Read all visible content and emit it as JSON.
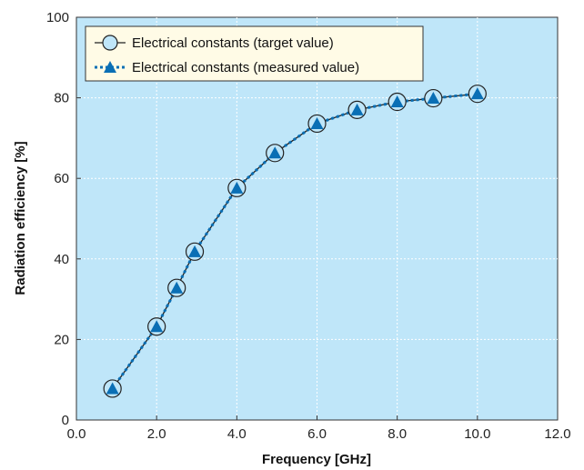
{
  "chart_data": {
    "type": "line",
    "xlabel": "Frequency [GHz]",
    "ylabel": "Radiation efficiency [%]",
    "xlim": [
      0,
      12
    ],
    "ylim": [
      0,
      100
    ],
    "x_ticks": [
      "0.0",
      "2.0",
      "4.0",
      "6.0",
      "8.0",
      "10.0",
      "12.0"
    ],
    "y_ticks": [
      "0",
      "20",
      "40",
      "60",
      "80",
      "100"
    ],
    "grid": true,
    "legend_position": "top-left",
    "colors": {
      "plot_background": "#bfe6f9",
      "legend_background": "#fffbe6",
      "measured": "#0a6fb5",
      "target": "#222222"
    },
    "x": [
      0.9,
      2.0,
      2.5,
      2.95,
      4.0,
      4.95,
      6.0,
      7.0,
      8.0,
      8.9,
      10.0
    ],
    "series": [
      {
        "name": "Electrical constants (target value)",
        "marker": "circle",
        "values": [
          7.8,
          23.2,
          32.8,
          41.8,
          57.6,
          66.3,
          73.6,
          77.0,
          79.0,
          79.9,
          81.0
        ]
      },
      {
        "name": "Electrical constants (measured value)",
        "marker": "triangle",
        "values": [
          7.8,
          23.2,
          32.8,
          41.8,
          57.6,
          66.3,
          73.6,
          77.0,
          79.0,
          79.9,
          81.0
        ]
      }
    ]
  }
}
